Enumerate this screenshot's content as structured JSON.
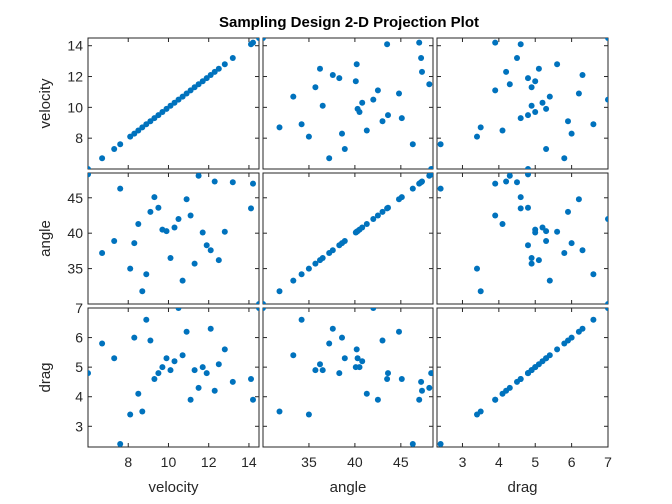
{
  "chart_data": {
    "type": "scatter-matrix",
    "title": "Sampling Design 2-D Projection Plot",
    "marker_color": "#0072BD",
    "variables": [
      {
        "name": "velocity",
        "range": [
          6.0,
          14.5
        ],
        "ticks": [
          8,
          10,
          12,
          14
        ]
      },
      {
        "name": "angle",
        "range": [
          30.0,
          48.5
        ],
        "ticks": [
          35,
          40,
          45
        ]
      },
      {
        "name": "drag",
        "range": [
          2.3,
          7.0
        ],
        "ticks": [
          3,
          4,
          5,
          6,
          7
        ]
      }
    ],
    "row_ticks": [
      {
        "values": [
          8,
          10,
          12,
          14
        ],
        "labels": [
          "8",
          "10",
          "12",
          "14"
        ]
      },
      {
        "values": [
          35,
          40,
          45
        ],
        "labels": [
          "35",
          "40",
          "45"
        ]
      },
      {
        "values": [
          3,
          4,
          5,
          6,
          7
        ],
        "labels": [
          "3",
          "4",
          "5",
          "6",
          "7"
        ]
      }
    ],
    "col_ticks": [
      {
        "values": [
          8,
          10,
          12,
          14
        ],
        "labels": [
          "8",
          "10",
          "12",
          "14"
        ]
      },
      {
        "values": [
          35,
          40,
          45
        ],
        "labels": [
          "35",
          "40",
          "45"
        ]
      },
      {
        "values": [
          3,
          4,
          5,
          6,
          7
        ],
        "labels": [
          "3",
          "4",
          "5",
          "6",
          "7"
        ]
      }
    ],
    "samples": [
      {
        "velocity": 6.0,
        "angle": 48.3,
        "drag": 4.8
      },
      {
        "velocity": 6.7,
        "angle": 37.2,
        "drag": 5.8
      },
      {
        "velocity": 7.3,
        "angle": 38.9,
        "drag": 5.3
      },
      {
        "velocity": 7.6,
        "angle": 46.3,
        "drag": 2.4
      },
      {
        "velocity": 8.1,
        "angle": 35.0,
        "drag": 3.4
      },
      {
        "velocity": 8.3,
        "angle": 38.6,
        "drag": 6.0
      },
      {
        "velocity": 8.5,
        "angle": 41.3,
        "drag": 4.1
      },
      {
        "velocity": 8.7,
        "angle": 31.8,
        "drag": 3.5
      },
      {
        "velocity": 8.9,
        "angle": 34.2,
        "drag": 6.6
      },
      {
        "velocity": 9.1,
        "angle": 43.0,
        "drag": 5.9
      },
      {
        "velocity": 9.3,
        "angle": 45.1,
        "drag": 4.6
      },
      {
        "velocity": 9.5,
        "angle": 43.6,
        "drag": 4.8
      },
      {
        "velocity": 9.7,
        "angle": 40.5,
        "drag": 5.0
      },
      {
        "velocity": 9.9,
        "angle": 40.3,
        "drag": 5.3
      },
      {
        "velocity": 10.1,
        "angle": 36.5,
        "drag": 4.9
      },
      {
        "velocity": 10.3,
        "angle": 40.8,
        "drag": 5.2
      },
      {
        "velocity": 10.5,
        "angle": 42.0,
        "drag": 7.0
      },
      {
        "velocity": 10.7,
        "angle": 33.3,
        "drag": 5.4
      },
      {
        "velocity": 10.9,
        "angle": 44.8,
        "drag": 6.2
      },
      {
        "velocity": 11.1,
        "angle": 42.5,
        "drag": 3.9
      },
      {
        "velocity": 11.3,
        "angle": 35.7,
        "drag": 4.9
      },
      {
        "velocity": 11.5,
        "angle": 48.1,
        "drag": 4.3
      },
      {
        "velocity": 11.7,
        "angle": 40.1,
        "drag": 5.0
      },
      {
        "velocity": 11.9,
        "angle": 38.3,
        "drag": 4.8
      },
      {
        "velocity": 12.1,
        "angle": 37.6,
        "drag": 6.3
      },
      {
        "velocity": 12.3,
        "angle": 47.3,
        "drag": 4.2
      },
      {
        "velocity": 12.5,
        "angle": 36.2,
        "drag": 5.1
      },
      {
        "velocity": 12.8,
        "angle": 40.2,
        "drag": 5.6
      },
      {
        "velocity": 13.2,
        "angle": 47.2,
        "drag": 4.5
      },
      {
        "velocity": 14.1,
        "angle": 43.5,
        "drag": 4.6
      },
      {
        "velocity": 14.2,
        "angle": 47.0,
        "drag": 3.9
      },
      {
        "velocity": 14.5,
        "angle": 30.0,
        "drag": 7.0
      }
    ]
  }
}
